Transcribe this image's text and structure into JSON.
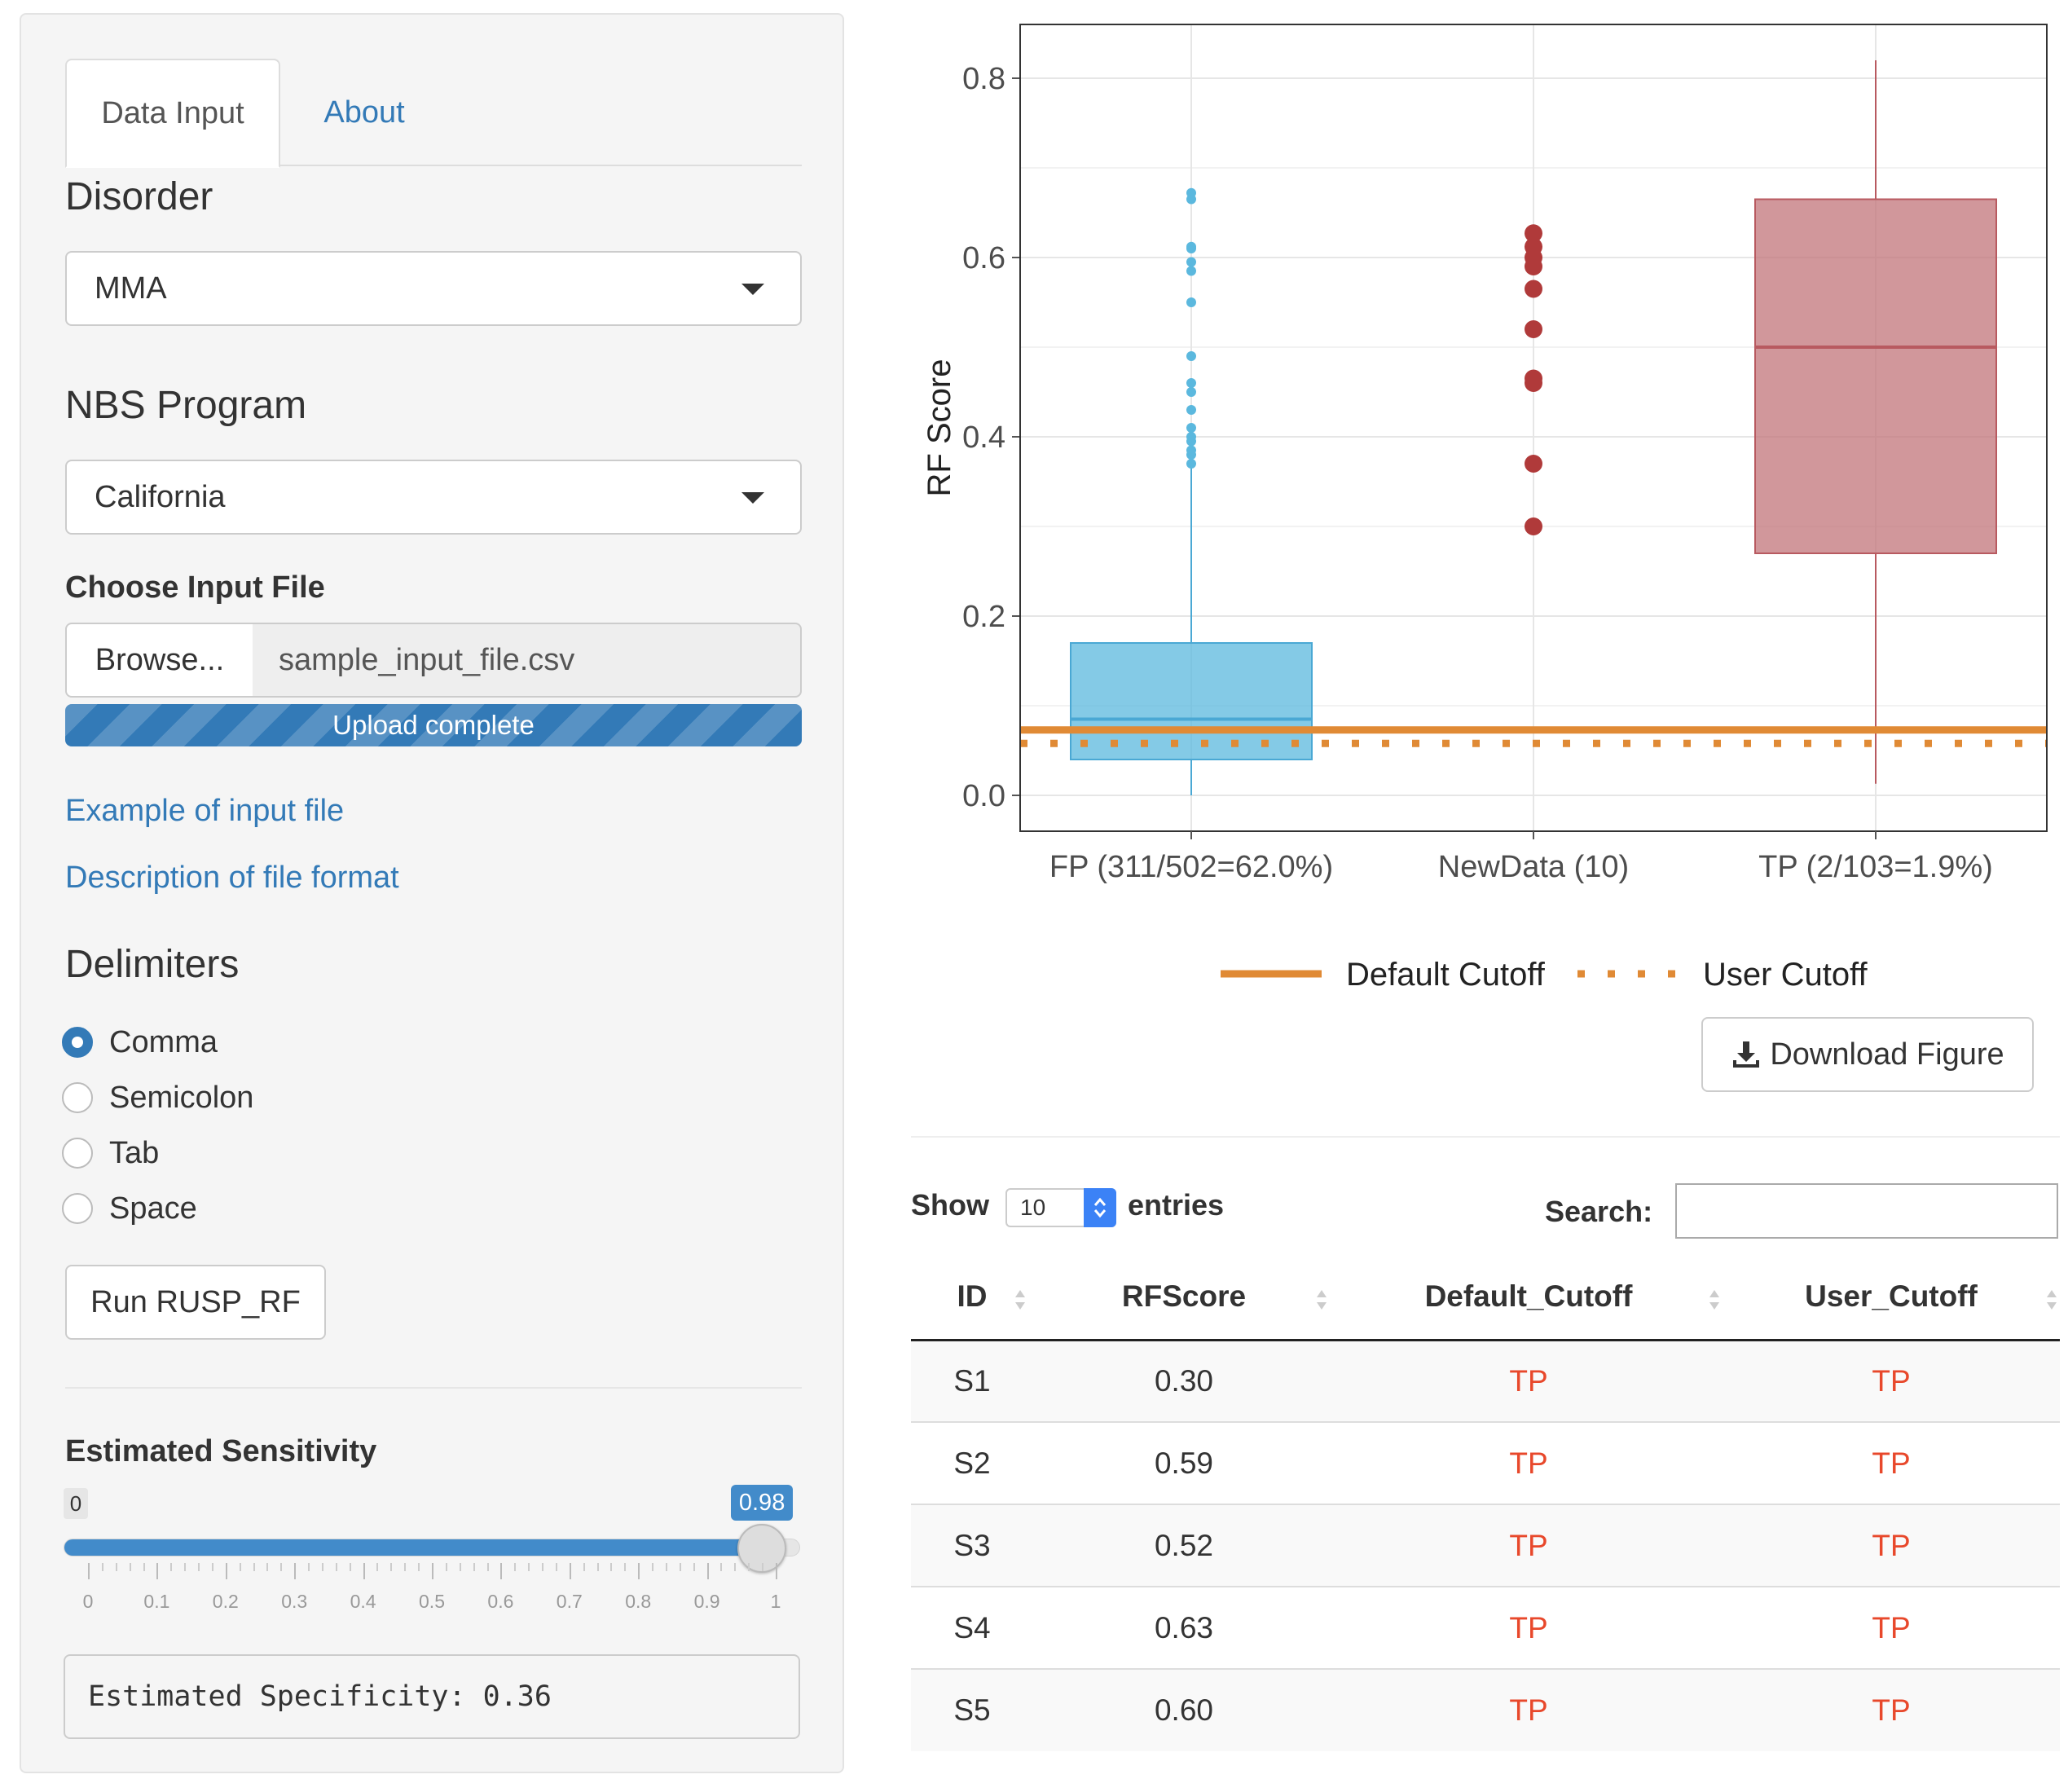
{
  "sidebar": {
    "tabs": [
      {
        "label": "Data Input",
        "active": true
      },
      {
        "label": "About",
        "active": false
      }
    ],
    "disorder": {
      "label": "Disorder",
      "value": "MMA"
    },
    "nbs_program": {
      "label": "NBS Program",
      "value": "California"
    },
    "file_input": {
      "label": "Choose Input File",
      "browse_label": "Browse...",
      "file_name": "sample_input_file.csv",
      "progress_text": "Upload complete",
      "progress": 1.0
    },
    "links": {
      "example": "Example of input file",
      "description": "Description of file format"
    },
    "delimiters": {
      "label": "Delimiters",
      "options": [
        "Comma",
        "Semicolon",
        "Tab",
        "Space"
      ],
      "selected": "Comma"
    },
    "run_button": "Run RUSP_RF",
    "sensitivity": {
      "label": "Estimated Sensitivity",
      "min": 0,
      "max": 1,
      "value": 0.98,
      "min_label": "0",
      "value_label": "0.98",
      "tick_labels": [
        "0",
        "0.1",
        "0.2",
        "0.3",
        "0.4",
        "0.5",
        "0.6",
        "0.7",
        "0.8",
        "0.9",
        "1"
      ]
    },
    "specificity_text": "Estimated Specificity: 0.36"
  },
  "colors": {
    "fp": "#5bb8de",
    "newdata": "#b03a3a",
    "tp": "#c27479",
    "cutoff": "#e08a35",
    "link": "#337ab7",
    "tp_text": "#e8482b"
  },
  "chart_data": {
    "type": "boxplot",
    "ylabel": "RF Score",
    "ylim": [
      -0.04,
      0.86
    ],
    "yticks": [
      0.0,
      0.2,
      0.4,
      0.6,
      0.8
    ],
    "ytick_labels": [
      "0.0",
      "0.2",
      "0.4",
      "0.6",
      "0.8"
    ],
    "categories": [
      "FP (311/502=62.0%)",
      "NewData (10)",
      "TP (2/103=1.9%)"
    ],
    "boxes": [
      {
        "category": "FP (311/502=62.0%)",
        "q1": 0.04,
        "median": 0.085,
        "q3": 0.17,
        "whisker_low": 0.0,
        "whisker_high": 0.365,
        "outliers": [
          0.37,
          0.38,
          0.385,
          0.395,
          0.4,
          0.41,
          0.43,
          0.45,
          0.46,
          0.49,
          0.55,
          0.585,
          0.595,
          0.61,
          0.612,
          0.665,
          0.672
        ]
      },
      {
        "category": "TP (2/103=1.9%)",
        "q1": 0.27,
        "median": 0.5,
        "q3": 0.665,
        "whisker_low": 0.013,
        "whisker_high": 0.82,
        "outliers": []
      }
    ],
    "points": [
      {
        "category": "NewData (10)",
        "values": [
          0.3,
          0.37,
          0.46,
          0.465,
          0.52,
          0.565,
          0.59,
          0.6,
          0.612,
          0.627
        ]
      }
    ],
    "default_cutoff": 0.073,
    "user_cutoff": 0.058,
    "legend": {
      "items": [
        "Default Cutoff",
        "User Cutoff"
      ],
      "position": "bottom"
    },
    "grid": true
  },
  "download_button": "Download Figure",
  "table_controls": {
    "show_label": "Show",
    "length_value": "10",
    "entries_label": "entries",
    "search_label": "Search:",
    "search_value": ""
  },
  "table": {
    "columns": [
      "ID",
      "RFScore",
      "Default_Cutoff",
      "User_Cutoff"
    ],
    "rows": [
      [
        "S1",
        "0.30",
        "TP",
        "TP"
      ],
      [
        "S2",
        "0.59",
        "TP",
        "TP"
      ],
      [
        "S3",
        "0.52",
        "TP",
        "TP"
      ],
      [
        "S4",
        "0.63",
        "TP",
        "TP"
      ],
      [
        "S5",
        "0.60",
        "TP",
        "TP"
      ]
    ]
  }
}
